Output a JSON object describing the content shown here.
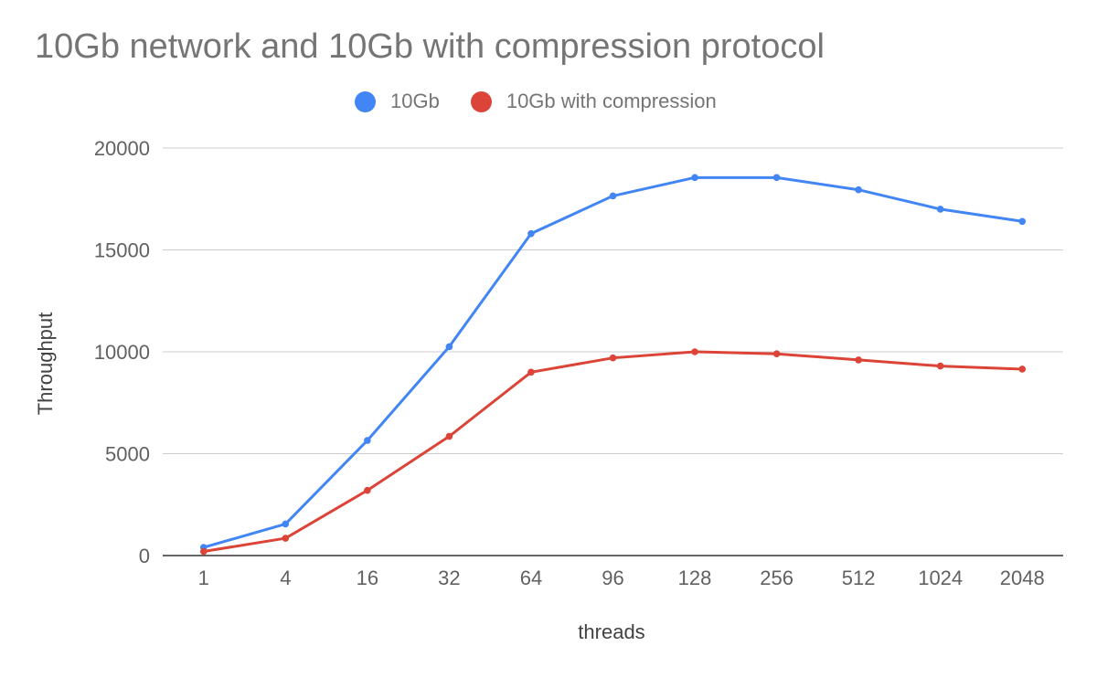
{
  "chart_data": {
    "type": "line",
    "title": "10Gb network and 10Gb with compression protocol",
    "xlabel": "threads",
    "ylabel": "Throughput",
    "categories": [
      "1",
      "4",
      "16",
      "32",
      "64",
      "96",
      "128",
      "256",
      "512",
      "1024",
      "2048"
    ],
    "ylim": [
      0,
      20000
    ],
    "yticks": [
      "0",
      "5000",
      "10000",
      "15000",
      "20000"
    ],
    "grid": true,
    "legend_position": "top",
    "series": [
      {
        "name": "10Gb",
        "color": "#4285F4",
        "values": [
          400,
          1550,
          5650,
          10250,
          15800,
          17650,
          18550,
          18550,
          17950,
          17000,
          16400
        ]
      },
      {
        "name": "10Gb with compression",
        "color": "#DB4437",
        "values": [
          200,
          850,
          3200,
          5850,
          9000,
          9700,
          10000,
          9900,
          9600,
          9300,
          9150
        ]
      }
    ]
  }
}
